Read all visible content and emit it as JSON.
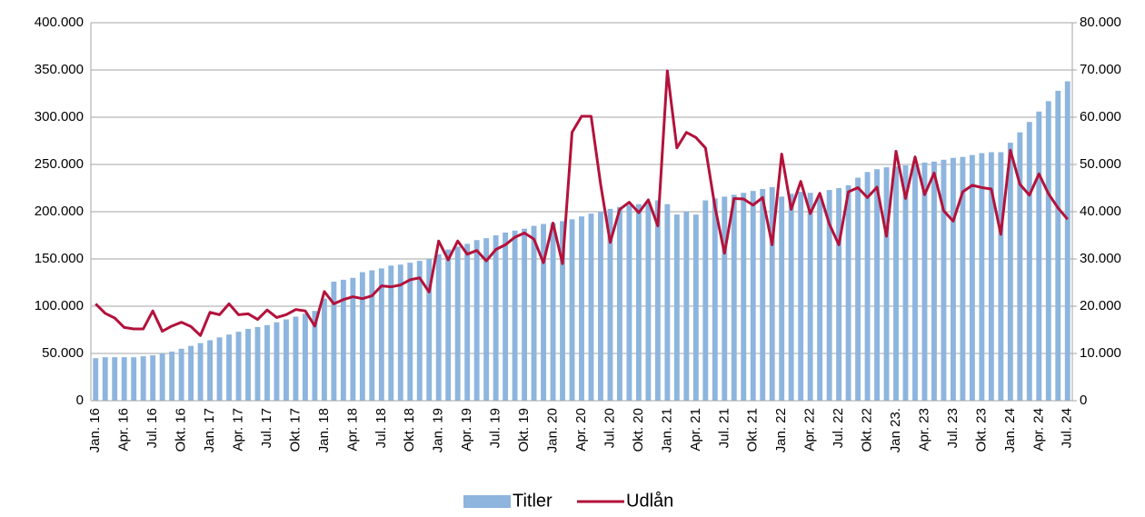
{
  "chart_data": {
    "type": "bar-line",
    "categories": [
      "Jan. 16",
      null,
      null,
      "Apr. 16",
      null,
      null,
      "Jul. 16",
      null,
      null,
      "Okt. 16",
      null,
      null,
      "Jan. 17",
      null,
      null,
      "Apr. 17",
      null,
      null,
      "Jul. 17",
      null,
      null,
      "Okt. 17",
      null,
      null,
      "Jan. 18",
      null,
      null,
      "Apr. 18",
      null,
      null,
      "Jul. 18",
      null,
      null,
      "Okt. 18",
      null,
      null,
      "Jan. 19",
      null,
      null,
      "Apr. 19",
      null,
      null,
      "Jul. 19",
      null,
      null,
      "Okt. 19",
      null,
      null,
      "Jan. 20",
      null,
      null,
      "Apr. 20",
      null,
      null,
      "Jul. 20",
      null,
      null,
      "Okt. 20",
      null,
      null,
      "Jan. 21",
      null,
      null,
      "Apr. 21",
      null,
      null,
      "Jul. 21",
      null,
      null,
      "Okt. 21",
      null,
      null,
      "Jan. 22",
      null,
      null,
      "Apr. 22",
      null,
      null,
      "Jul. 22",
      null,
      null,
      "Okt. 22",
      null,
      null,
      "Jan 23.",
      null,
      null,
      "Apr. 23",
      null,
      null,
      "Jul. 23",
      null,
      null,
      "Okt. 23",
      null,
      null,
      "Jan. 24",
      null,
      null,
      "Apr. 24",
      null,
      null,
      "Jul. 24"
    ],
    "series": [
      {
        "name": "Titler",
        "type": "bar",
        "color": "#8db5de",
        "values": [
          45000,
          46000,
          46000,
          46000,
          46000,
          47000,
          48000,
          50000,
          52000,
          55000,
          58000,
          61000,
          64000,
          67000,
          70000,
          73000,
          76000,
          78000,
          80000,
          83000,
          86000,
          89000,
          92000,
          95000,
          108000,
          126000,
          128000,
          130000,
          136000,
          138000,
          140000,
          143000,
          144000,
          146000,
          148000,
          150000,
          155000,
          160000,
          163000,
          166000,
          170000,
          172000,
          175000,
          178000,
          180000,
          182000,
          185000,
          187000,
          188000,
          190000,
          192000,
          195000,
          198000,
          200000,
          203000,
          205000,
          207000,
          208000,
          210000,
          212000,
          208000,
          197000,
          200000,
          197000,
          212000,
          214000,
          216000,
          218000,
          220000,
          222000,
          224000,
          226000,
          216000,
          219000,
          221000,
          220000,
          215000,
          223000,
          225000,
          228000,
          236000,
          242000,
          245000,
          247000,
          248000,
          249000,
          250000,
          252000,
          253000,
          255000,
          257000,
          258000,
          260000,
          262000,
          263000,
          263000,
          273000,
          284000,
          295000,
          306000,
          317000,
          328000,
          338000
        ]
      },
      {
        "name": "Udlån",
        "type": "line",
        "axis": "y2",
        "color": "#b3123b",
        "values": [
          20500,
          18500,
          17500,
          15500,
          15200,
          15200,
          19000,
          14700,
          15800,
          16600,
          15700,
          13800,
          18700,
          18200,
          20500,
          18200,
          18400,
          17200,
          19200,
          17600,
          18200,
          19300,
          19000,
          15800,
          23100,
          20500,
          21400,
          22000,
          21600,
          22200,
          24300,
          24100,
          24500,
          25600,
          26000,
          23000,
          33800,
          29800,
          33800,
          31000,
          31800,
          29600,
          32000,
          33000,
          34600,
          35500,
          34200,
          29200,
          37600,
          29000,
          56800,
          60200,
          60200,
          45800,
          33500,
          40500,
          42000,
          39800,
          42500,
          37000,
          69800,
          53500,
          56800,
          55700,
          53500,
          41000,
          31200,
          42800,
          42700,
          41400,
          43000,
          33000,
          52200,
          40500,
          46400,
          39600,
          43900,
          37400,
          33000,
          44200,
          45100,
          43000,
          45200,
          34800,
          52800,
          42800,
          51600,
          43600,
          48200,
          40200,
          38000,
          44200,
          45600,
          45100,
          44800,
          35200,
          53000,
          45800,
          43500,
          48000,
          43800,
          40800,
          38400
        ]
      }
    ],
    "ylim": [
      0,
      400000
    ],
    "yticks": [
      0,
      {
        "value": 50000,
        "label": "50.000"
      },
      {
        "value": 100000,
        "label": "100.000"
      },
      {
        "value": 150000,
        "label": "150.000"
      },
      {
        "value": 200000,
        "label": "200.000"
      },
      {
        "value": 250000,
        "label": "250.000"
      },
      {
        "value": 300000,
        "label": "300.000"
      },
      {
        "value": 350000,
        "label": "350.000"
      },
      {
        "value": 400000,
        "label": "400.000"
      }
    ],
    "y2lim": [
      0,
      80000
    ],
    "y2ticks": [
      0,
      {
        "value": 10000,
        "label": "10.000"
      },
      {
        "value": 20000,
        "label": "20.000"
      },
      {
        "value": 30000,
        "label": "30.000"
      },
      {
        "value": 40000,
        "label": "40.000"
      },
      {
        "value": 50000,
        "label": "50.000"
      },
      {
        "value": 60000,
        "label": "60.000"
      },
      {
        "value": 70000,
        "label": "70.000"
      },
      {
        "value": 80000,
        "label": "80.000"
      }
    ],
    "grid": true,
    "legend": "bottom"
  }
}
